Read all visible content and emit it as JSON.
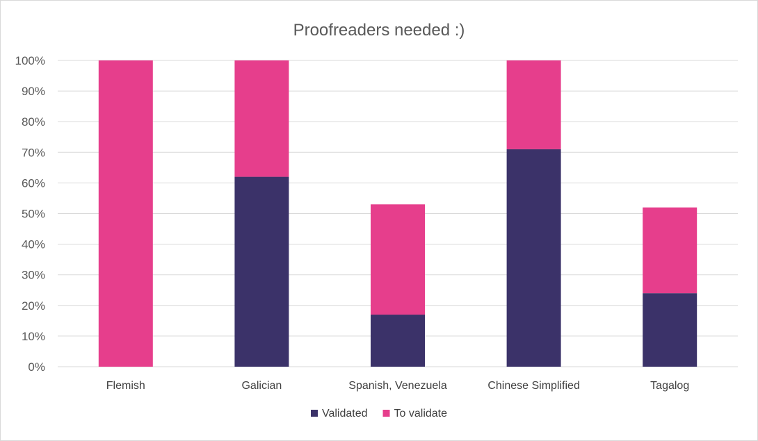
{
  "chart_data": {
    "type": "bar",
    "stacked": true,
    "title": "Proofreaders needed :)",
    "xlabel": "",
    "ylabel": "",
    "ylim": [
      0,
      100
    ],
    "y_ticks": [
      "0%",
      "10%",
      "20%",
      "30%",
      "40%",
      "50%",
      "60%",
      "70%",
      "80%",
      "90%",
      "100%"
    ],
    "categories": [
      "Flemish",
      "Galician",
      "Spanish, Venezuela",
      "Chinese Simplified",
      "Tagalog"
    ],
    "series": [
      {
        "name": "Validated",
        "color": "#3b3269",
        "values": [
          0,
          62,
          17,
          71,
          24
        ]
      },
      {
        "name": "To validate",
        "color": "#e63e8c",
        "values": [
          100,
          38,
          36,
          29,
          28
        ]
      }
    ],
    "grid": true,
    "legend_position": "bottom"
  }
}
